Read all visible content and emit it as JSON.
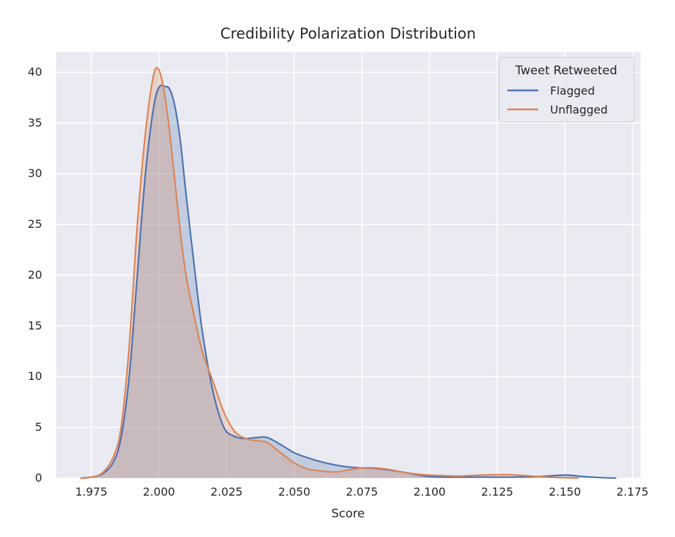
{
  "chart_data": {
    "type": "area",
    "title": "Credibility Polarization Distribution",
    "xlabel": "Score",
    "ylabel": "",
    "xlim": [
      1.962,
      2.178
    ],
    "ylim": [
      0,
      42
    ],
    "x_ticks": [
      1.975,
      2.0,
      2.025,
      2.05,
      2.075,
      2.1,
      2.125,
      2.15,
      2.175
    ],
    "x_tick_labels": [
      "1.975",
      "2.000",
      "2.025",
      "2.050",
      "2.075",
      "2.100",
      "2.125",
      "2.150",
      "2.175"
    ],
    "y_ticks": [
      0,
      5,
      10,
      15,
      20,
      25,
      30,
      35,
      40
    ],
    "y_tick_labels": [
      "0",
      "5",
      "10",
      "15",
      "20",
      "25",
      "30",
      "35",
      "40"
    ],
    "grid": true,
    "legend": {
      "title": "Tweet Retweeted",
      "position": "top-right"
    },
    "colors": {
      "background": "#eaeaf2",
      "grid": "#ffffff",
      "flagged": "#4c72b0",
      "unflagged": "#dd8452"
    },
    "series": [
      {
        "name": "Flagged",
        "color": "#4c72b0",
        "x": [
          1.971,
          1.975,
          1.979,
          1.983,
          1.986,
          1.989,
          1.992,
          1.995,
          1.998,
          2.0,
          2.002,
          2.004,
          2.006,
          2.008,
          2.01,
          2.013,
          2.016,
          2.02,
          2.024,
          2.028,
          2.032,
          2.036,
          2.04,
          2.045,
          2.05,
          2.055,
          2.06,
          2.065,
          2.07,
          2.075,
          2.08,
          2.085,
          2.09,
          2.095,
          2.1,
          2.105,
          2.11,
          2.12,
          2.13,
          2.14,
          2.15,
          2.155,
          2.16,
          2.165,
          2.169
        ],
        "y": [
          0,
          0.1,
          0.4,
          1.5,
          4,
          10,
          20,
          30,
          36.5,
          38.5,
          38.6,
          38.3,
          36.5,
          33,
          28,
          21,
          14.5,
          8.5,
          5,
          4.1,
          3.9,
          4.0,
          4.0,
          3.3,
          2.5,
          2.0,
          1.6,
          1.3,
          1.1,
          1.0,
          0.95,
          0.8,
          0.6,
          0.35,
          0.15,
          0.1,
          0.1,
          0.1,
          0.1,
          0.15,
          0.3,
          0.2,
          0.1,
          0.03,
          0
        ]
      },
      {
        "name": "Unflagged",
        "color": "#dd8452",
        "x": [
          1.971,
          1.975,
          1.979,
          1.983,
          1.986,
          1.989,
          1.992,
          1.995,
          1.998,
          2.0,
          2.002,
          2.004,
          2.006,
          2.008,
          2.01,
          2.013,
          2.016,
          2.02,
          2.024,
          2.028,
          2.032,
          2.036,
          2.04,
          2.045,
          2.05,
          2.055,
          2.06,
          2.065,
          2.07,
          2.075,
          2.08,
          2.085,
          2.09,
          2.095,
          2.1,
          2.105,
          2.11,
          2.12,
          2.128,
          2.135,
          2.14,
          2.145,
          2.15,
          2.155
        ],
        "y": [
          0,
          0.1,
          0.5,
          2,
          5,
          13,
          25,
          34,
          39.7,
          40.2,
          38,
          34,
          29,
          24,
          20,
          16,
          12.5,
          9.5,
          6.5,
          4.6,
          3.9,
          3.7,
          3.5,
          2.5,
          1.5,
          0.9,
          0.7,
          0.6,
          0.8,
          1.0,
          1.0,
          0.85,
          0.6,
          0.4,
          0.3,
          0.25,
          0.2,
          0.3,
          0.35,
          0.25,
          0.15,
          0.08,
          0.03,
          0
        ]
      }
    ]
  }
}
